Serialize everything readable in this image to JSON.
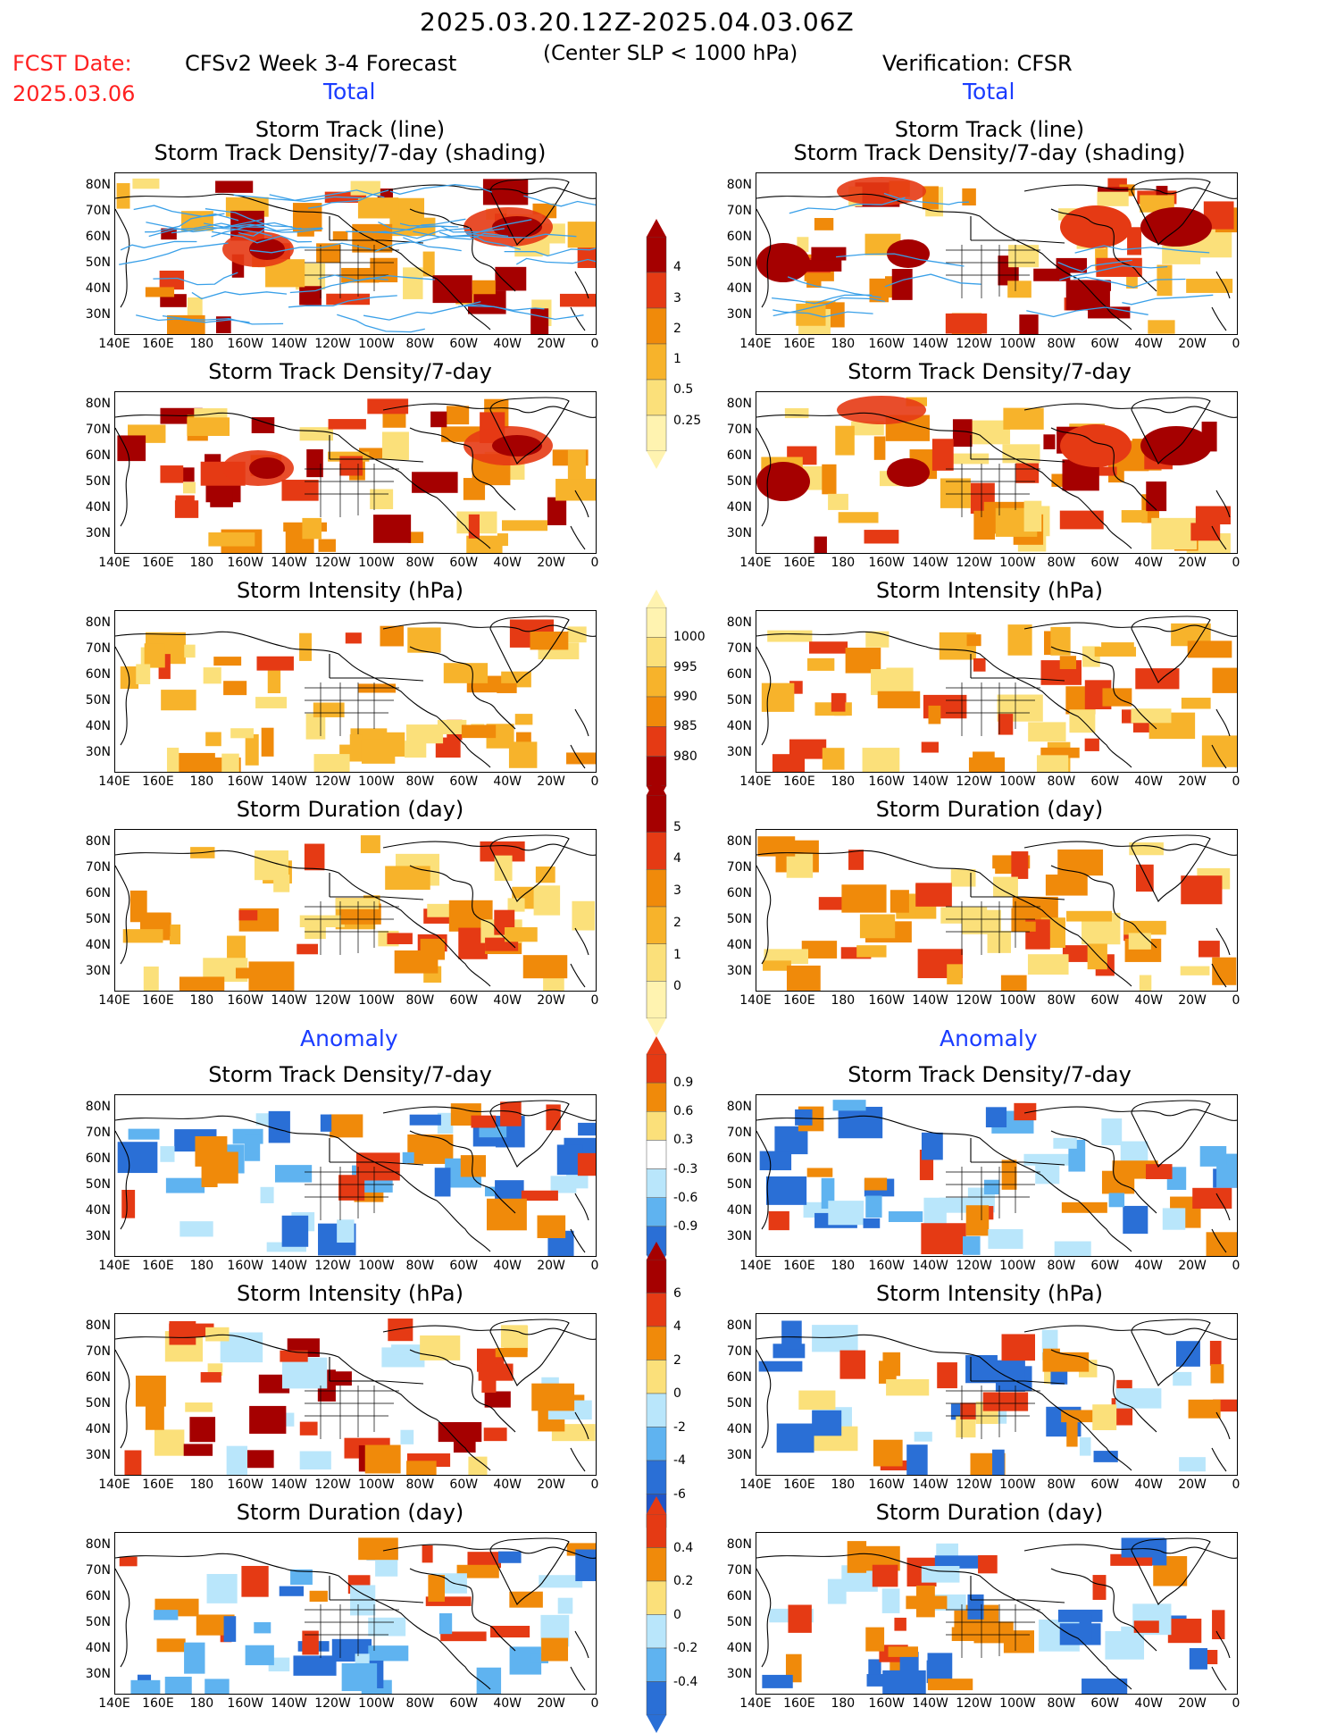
{
  "header": {
    "date_range": "2025.03.20.12Z-2025.04.03.06Z",
    "criterion": "(Center SLP < 1000 hPa)",
    "fcst_label": "FCST Date:",
    "fcst_date": "2025.03.06",
    "left_title": "CFSv2 Week 3-4 Forecast",
    "right_title": "Verification: CFSR"
  },
  "sections": {
    "total": "Total",
    "anomaly": "Anomaly"
  },
  "panels": {
    "track_line": "Storm Track (line)",
    "track_shading": "Storm Track Density/7-day (shading)",
    "density": "Storm Track Density/7-day",
    "intensity": "Storm Intensity (hPa)",
    "duration": "Storm Duration (day)"
  },
  "axes": {
    "lat": [
      "80N",
      "70N",
      "60N",
      "50N",
      "40N",
      "30N"
    ],
    "lon": [
      "140E",
      "160E",
      "180",
      "160W",
      "140W",
      "120W",
      "100W",
      "80W",
      "60W",
      "40W",
      "20W",
      "0"
    ]
  },
  "colorbars": {
    "density_total": [
      "4",
      "3",
      "2",
      "1",
      "0.5",
      "0.25"
    ],
    "intensity_total": [
      "1000",
      "995",
      "990",
      "985",
      "980"
    ],
    "duration_total": [
      "5",
      "4",
      "3",
      "2",
      "1",
      "0"
    ],
    "density_anom": [
      "0.9",
      "0.6",
      "0.3",
      "-0.3",
      "-0.6",
      "-0.9"
    ],
    "intensity_anom": [
      "6",
      "4",
      "2",
      "0",
      "-2",
      "-4",
      "-6"
    ],
    "duration_anom": [
      "0.4",
      "0.2",
      "0",
      "-0.2",
      "-0.4"
    ]
  },
  "colors": {
    "dark_red": "#a50000",
    "red": "#e53a14",
    "orange": "#f08a0a",
    "light_orange": "#f7b32b",
    "yellow": "#fbe07a",
    "pale_yellow": "#fff3b0",
    "light_blue": "#b9e6fb",
    "mid_blue": "#5fb3f0",
    "blue": "#2a6fd6",
    "track_line": "#3aa0e8"
  }
}
